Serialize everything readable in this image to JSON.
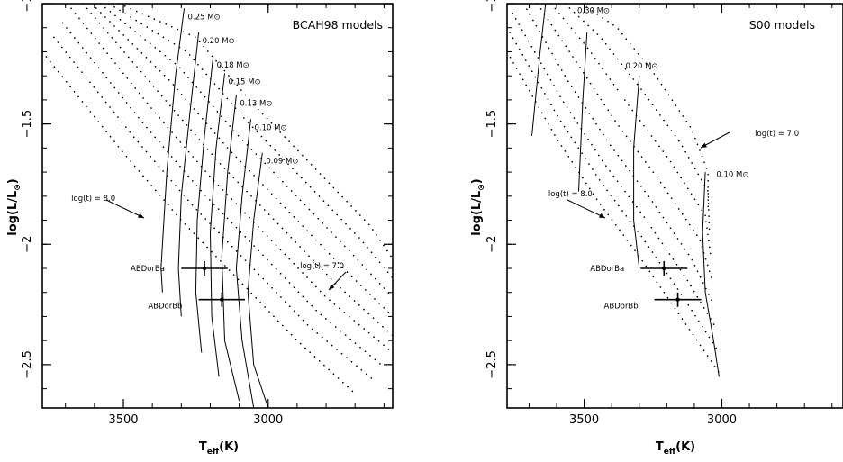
{
  "chart_data": [
    {
      "type": "scatter",
      "title": "BCAH98 models",
      "xlabel": "T_eff(K)",
      "ylabel": "log(L/L⊙)",
      "xlim": [
        3780,
        2570
      ],
      "ylim": [
        -2.68,
        -1.0
      ],
      "x_reversed": true,
      "xticks": [
        3500,
        3000
      ],
      "yticks": [
        -1,
        -1.5,
        -2,
        -2.5
      ],
      "ytick_labels": [
        "−1",
        "−1.5",
        "−2",
        "−2.5"
      ],
      "isochrone_labels": [
        {
          "text": "log(t) = 8.0",
          "x": 3680,
          "y": -1.82
        },
        {
          "text": "log(t) = 7.0",
          "x": 2890,
          "y": -2.1
        }
      ],
      "isochrones": [
        {
          "points": [
            [
              3780,
              -1.2
            ],
            [
              3500,
              -1.62
            ],
            [
              3300,
              -1.9
            ],
            [
              3100,
              -2.15
            ],
            [
              2900,
              -2.4
            ],
            [
              2700,
              -2.62
            ]
          ]
        },
        {
          "points": [
            [
              3740,
              -1.14
            ],
            [
              3460,
              -1.56
            ],
            [
              3260,
              -1.84
            ],
            [
              3060,
              -2.09
            ],
            [
              2860,
              -2.34
            ],
            [
              2640,
              -2.56
            ]
          ]
        },
        {
          "points": [
            [
              3710,
              -1.08
            ],
            [
              3430,
              -1.5
            ],
            [
              3230,
              -1.78
            ],
            [
              3030,
              -2.03
            ],
            [
              2830,
              -2.28
            ],
            [
              2610,
              -2.5
            ]
          ]
        },
        {
          "points": [
            [
              3680,
              -1.02
            ],
            [
              3400,
              -1.44
            ],
            [
              3200,
              -1.72
            ],
            [
              3000,
              -1.97
            ],
            [
              2800,
              -2.22
            ],
            [
              2580,
              -2.44
            ]
          ]
        },
        {
          "points": [
            [
              3640,
              -1.0
            ],
            [
              3370,
              -1.38
            ],
            [
              3170,
              -1.66
            ],
            [
              2970,
              -1.91
            ],
            [
              2770,
              -2.16
            ],
            [
              2570,
              -2.38
            ]
          ]
        },
        {
          "points": [
            [
              3610,
              -1.0
            ],
            [
              3340,
              -1.32
            ],
            [
              3140,
              -1.6
            ],
            [
              2940,
              -1.85
            ],
            [
              2740,
              -2.1
            ],
            [
              2570,
              -2.3
            ]
          ]
        },
        {
          "points": [
            [
              3580,
              -1.0
            ],
            [
              3310,
              -1.26
            ],
            [
              3110,
              -1.54
            ],
            [
              2910,
              -1.79
            ],
            [
              2710,
              -2.04
            ],
            [
              2570,
              -2.22
            ]
          ]
        },
        {
          "points": [
            [
              3550,
              -1.0
            ],
            [
              3280,
              -1.2
            ],
            [
              3080,
              -1.48
            ],
            [
              2880,
              -1.73
            ],
            [
              2680,
              -1.98
            ],
            [
              2570,
              -2.14
            ]
          ]
        },
        {
          "points": [
            [
              3515,
              -1.0
            ],
            [
              3250,
              -1.14
            ],
            [
              3050,
              -1.42
            ],
            [
              2850,
              -1.67
            ],
            [
              2650,
              -1.92
            ],
            [
              2570,
              -2.06
            ]
          ]
        }
      ],
      "tracks": [
        {
          "label": "0.25 M⊙",
          "points": [
            [
              3290,
              -1.02
            ],
            [
              3320,
              -1.3
            ],
            [
              3350,
              -1.7
            ],
            [
              3370,
              -2.1
            ],
            [
              3365,
              -2.2
            ]
          ]
        },
        {
          "label": "0.20 M⊙",
          "points": [
            [
              3240,
              -1.12
            ],
            [
              3270,
              -1.45
            ],
            [
              3300,
              -1.8
            ],
            [
              3310,
              -2.1
            ],
            [
              3300,
              -2.3
            ]
          ]
        },
        {
          "label": "0.18 M⊙",
          "points": [
            [
              3190,
              -1.22
            ],
            [
              3220,
              -1.55
            ],
            [
              3245,
              -1.9
            ],
            [
              3250,
              -2.2
            ],
            [
              3230,
              -2.45
            ]
          ]
        },
        {
          "label": "0.15 M⊙",
          "points": [
            [
              3150,
              -1.29
            ],
            [
              3180,
              -1.6
            ],
            [
              3200,
              -1.95
            ],
            [
              3195,
              -2.3
            ],
            [
              3170,
              -2.55
            ]
          ]
        },
        {
          "label": "0.13 M⊙",
          "points": [
            [
              3110,
              -1.38
            ],
            [
              3140,
              -1.7
            ],
            [
              3160,
              -2.05
            ],
            [
              3150,
              -2.4
            ],
            [
              3100,
              -2.65
            ]
          ]
        },
        {
          "label": "0.10 M⊙",
          "points": [
            [
              3060,
              -1.48
            ],
            [
              3090,
              -1.8
            ],
            [
              3110,
              -2.1
            ],
            [
              3090,
              -2.4
            ],
            [
              3050,
              -2.68
            ]
          ]
        },
        {
          "label": "0.09 M⊙",
          "points": [
            [
              3020,
              -1.62
            ],
            [
              3050,
              -1.9
            ],
            [
              3070,
              -2.2
            ],
            [
              3050,
              -2.5
            ],
            [
              3000,
              -2.68
            ]
          ]
        }
      ],
      "stars": [
        {
          "label": "ABDorBa",
          "x": 3220,
          "y": -2.1,
          "xerr": 80,
          "yerr": 0.03
        },
        {
          "label": "ABDorBb",
          "x": 3160,
          "y": -2.23,
          "xerr": 80,
          "yerr": 0.03
        }
      ]
    },
    {
      "type": "scatter",
      "title": "S00 models",
      "xlabel": "T_eff(K)",
      "ylabel": "log(L/L⊙)",
      "xlim": [
        3780,
        2560
      ],
      "ylim": [
        -2.68,
        -1.0
      ],
      "x_reversed": true,
      "xticks": [
        3500,
        3000
      ],
      "yticks": [
        -1,
        -1.5,
        -2,
        -2.5
      ],
      "ytick_labels": [
        "−1",
        "−1.5",
        "−2",
        "−2.5"
      ],
      "isochrone_labels": [
        {
          "text": "log(t) = 8.0",
          "x": 3630,
          "y": -1.8
        },
        {
          "text": "log(t) = 7.0",
          "x": 2880,
          "y": -1.55
        }
      ],
      "isochrones": [
        {
          "points": [
            [
              3780,
              -1.2
            ],
            [
              3600,
              -1.56
            ],
            [
              3450,
              -1.82
            ],
            [
              3300,
              -2.05
            ],
            [
              3150,
              -2.3
            ],
            [
              3000,
              -2.55
            ]
          ]
        },
        {
          "points": [
            [
              3770,
              -1.12
            ],
            [
              3590,
              -1.48
            ],
            [
              3440,
              -1.74
            ],
            [
              3290,
              -1.97
            ],
            [
              3140,
              -2.22
            ],
            [
              3010,
              -2.45
            ]
          ]
        },
        {
          "points": [
            [
              3760,
              -1.04
            ],
            [
              3580,
              -1.4
            ],
            [
              3430,
              -1.66
            ],
            [
              3280,
              -1.89
            ],
            [
              3130,
              -2.14
            ],
            [
              3020,
              -2.35
            ]
          ]
        },
        {
          "points": [
            [
              3720,
              -1.0
            ],
            [
              3560,
              -1.32
            ],
            [
              3410,
              -1.58
            ],
            [
              3260,
              -1.81
            ],
            [
              3110,
              -2.06
            ],
            [
              3030,
              -2.25
            ]
          ]
        },
        {
          "points": [
            [
              3670,
              -1.0
            ],
            [
              3530,
              -1.24
            ],
            [
              3380,
              -1.5
            ],
            [
              3230,
              -1.73
            ],
            [
              3080,
              -1.98
            ],
            [
              3035,
              -2.15
            ]
          ]
        },
        {
          "points": [
            [
              3620,
              -1.0
            ],
            [
              3490,
              -1.18
            ],
            [
              3340,
              -1.42
            ],
            [
              3190,
              -1.65
            ],
            [
              3060,
              -1.88
            ],
            [
              3040,
              -2.05
            ]
          ]
        },
        {
          "points": [
            [
              3570,
              -1.0
            ],
            [
              3440,
              -1.14
            ],
            [
              3290,
              -1.36
            ],
            [
              3150,
              -1.58
            ],
            [
              3050,
              -1.78
            ],
            [
              3045,
              -1.95
            ]
          ]
        },
        {
          "points": [
            [
              3510,
              -1.0
            ],
            [
              3380,
              -1.1
            ],
            [
              3240,
              -1.3
            ],
            [
              3110,
              -1.52
            ],
            [
              3050,
              -1.7
            ],
            [
              3050,
              -1.85
            ]
          ]
        }
      ],
      "tracks": [
        {
          "label": "0.30 M⊙",
          "points": [
            [
              3640,
              -1.0
            ],
            [
              3660,
              -1.2
            ],
            [
              3690,
              -1.55
            ]
          ]
        },
        {
          "label": "0.20 M⊙",
          "points": [
            [
              3490,
              -1.12
            ],
            [
              3505,
              -1.4
            ],
            [
              3520,
              -1.78
            ]
          ]
        },
        {
          "label": "0.10 M⊙",
          "points": [
            [
              3300,
              -1.3
            ],
            [
              3320,
              -1.6
            ],
            [
              3320,
              -1.9
            ],
            [
              3300,
              -2.1
            ]
          ]
        },
        {
          "label": "",
          "points": [
            [
              3060,
              -1.7
            ],
            [
              3070,
              -1.95
            ],
            [
              3060,
              -2.2
            ],
            [
              3030,
              -2.4
            ],
            [
              3010,
              -2.55
            ]
          ]
        }
      ],
      "track_labels": [
        {
          "text": "0.30 M⊙",
          "x": 3525,
          "y": -1.04
        },
        {
          "text": "0.20 M⊙",
          "x": 3350,
          "y": -1.27
        },
        {
          "text": "0.10 M⊙",
          "x": 3020,
          "y": -1.72
        }
      ],
      "stars": [
        {
          "label": "ABDorBa",
          "x": 3210,
          "y": -2.1,
          "xerr": 85,
          "yerr": 0.03
        },
        {
          "label": "ABDorBb",
          "x": 3160,
          "y": -2.23,
          "xerr": 85,
          "yerr": 0.03
        }
      ]
    }
  ]
}
